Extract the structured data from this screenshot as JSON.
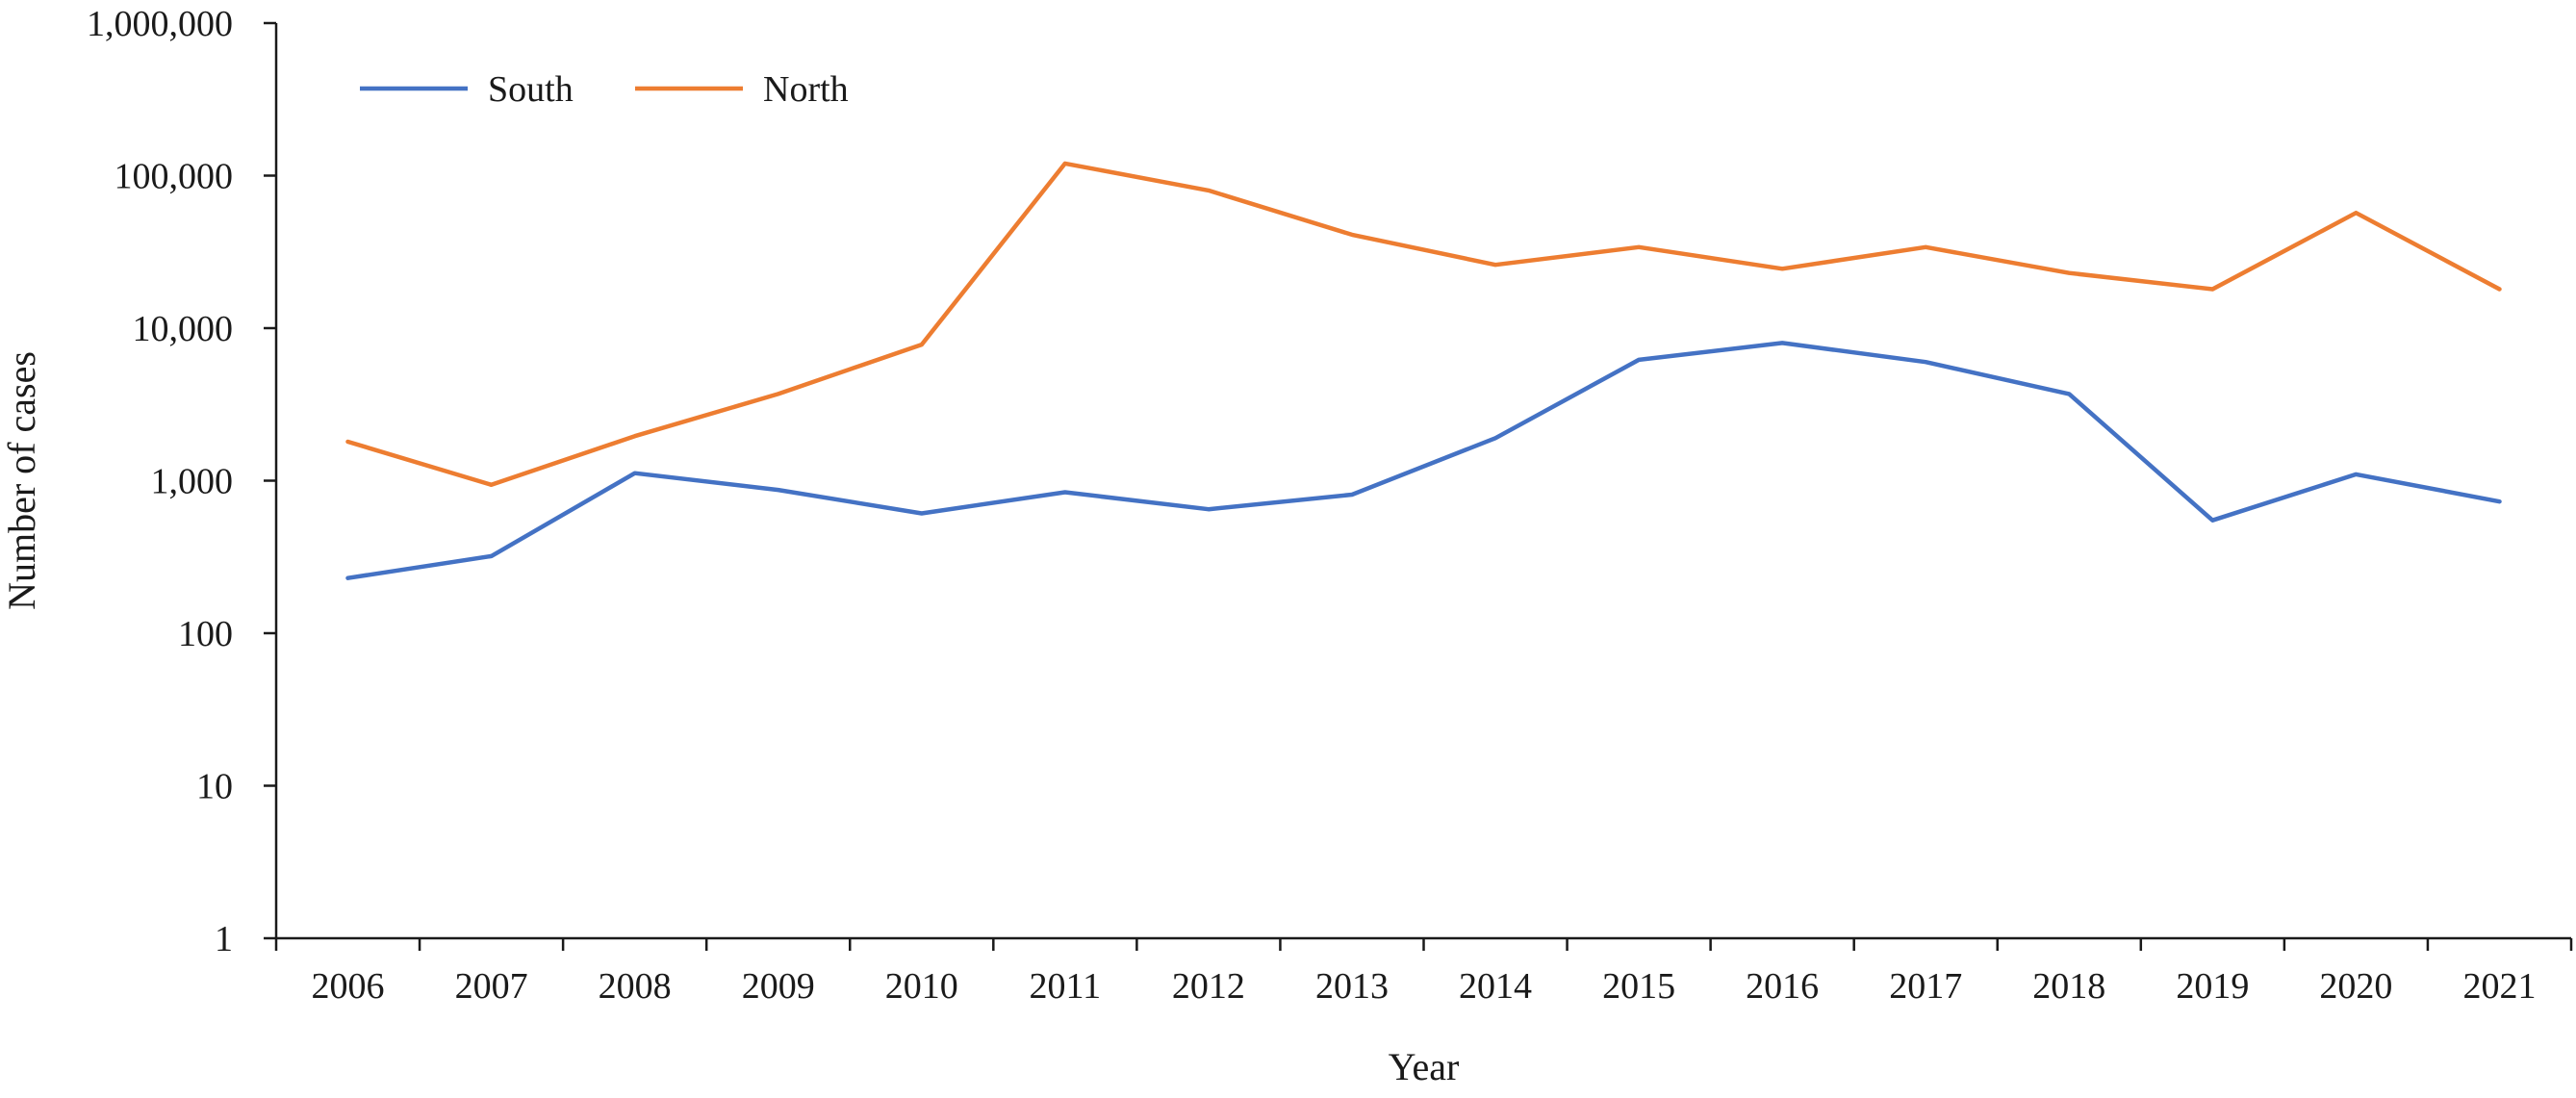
{
  "chart_data": {
    "type": "line",
    "title": "",
    "xlabel": "Year",
    "ylabel": "Number of cases",
    "y_scale": "log",
    "ylim": [
      1,
      1000000
    ],
    "y_ticks": [
      1,
      10,
      100,
      1000,
      10000,
      100000,
      1000000
    ],
    "y_tick_labels": [
      "1",
      "10",
      "100",
      "1,000",
      "10,000",
      "100,000",
      "1,000,000"
    ],
    "x": [
      "2006",
      "2007",
      "2008",
      "2009",
      "2010",
      "2011",
      "2012",
      "2013",
      "2014",
      "2015",
      "2016",
      "2017",
      "2018",
      "2019",
      "2020",
      "2021"
    ],
    "series": [
      {
        "name": "South",
        "color": "#4472C4",
        "values": [
          230,
          320,
          1120,
          870,
          610,
          840,
          650,
          810,
          1900,
          6200,
          8000,
          6000,
          3700,
          550,
          1100,
          730
        ]
      },
      {
        "name": "North",
        "color": "#ED7D31",
        "values": [
          1800,
          940,
          1960,
          3700,
          7800,
          120000,
          80000,
          41000,
          26000,
          34000,
          24500,
          34000,
          23000,
          18000,
          57000,
          18000
        ]
      }
    ],
    "grid": false,
    "legend_position": "top-left"
  }
}
